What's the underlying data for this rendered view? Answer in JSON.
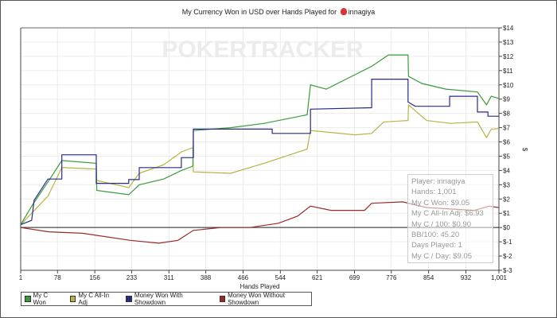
{
  "chart_data": {
    "type": "line",
    "title": "My Currency Won in USD over Hands Played for",
    "player": "innagiya",
    "xlabel": "Hands Played",
    "ylabel": "$",
    "xlim": [
      1,
      1001
    ],
    "ylim": [
      -3,
      14
    ],
    "x_ticks": [
      "1",
      "78",
      "156",
      "233",
      "311",
      "388",
      "466",
      "544",
      "621",
      "699",
      "776",
      "854",
      "932",
      "1,001"
    ],
    "x_tick_values": [
      1,
      78,
      156,
      233,
      311,
      388,
      466,
      544,
      621,
      699,
      776,
      854,
      932,
      1001
    ],
    "y_ticks": [
      "$-3",
      "$-2",
      "$-1",
      "$0",
      "$1",
      "$2",
      "$3",
      "$4",
      "$5",
      "$6",
      "$7",
      "$8",
      "$9",
      "$10",
      "$11",
      "$12",
      "$13",
      "$14"
    ],
    "y_tick_values": [
      -3,
      -2,
      -1,
      0,
      1,
      2,
      3,
      4,
      5,
      6,
      7,
      8,
      9,
      10,
      11,
      12,
      13,
      14
    ],
    "grid": true,
    "watermark": "POKERTRACKER",
    "legend_position": "bottom-left",
    "series": [
      {
        "name": "My C Won",
        "color": "#3a9a3a",
        "points": [
          [
            1,
            0.2
          ],
          [
            24,
            1.5
          ],
          [
            58,
            3.2
          ],
          [
            87,
            4.7
          ],
          [
            159,
            4.5
          ],
          [
            160,
            2.6
          ],
          [
            227,
            2.3
          ],
          [
            249,
            3.0
          ],
          [
            300,
            3.4
          ],
          [
            337,
            4.0
          ],
          [
            361,
            4.3
          ],
          [
            362,
            6.8
          ],
          [
            440,
            7.0
          ],
          [
            510,
            7.3
          ],
          [
            600,
            7.9
          ],
          [
            607,
            10.0
          ],
          [
            640,
            9.7
          ],
          [
            735,
            11.3
          ],
          [
            770,
            12.1
          ],
          [
            811,
            12.1
          ],
          [
            812,
            10.6
          ],
          [
            840,
            10.1
          ],
          [
            890,
            9.7
          ],
          [
            956,
            9.5
          ],
          [
            975,
            8.6
          ],
          [
            985,
            9.2
          ],
          [
            1001,
            9.05
          ]
        ]
      },
      {
        "name": "My C All-In Adj",
        "color": "#b5b540",
        "points": [
          [
            1,
            0.2
          ],
          [
            24,
            1.0
          ],
          [
            58,
            2.2
          ],
          [
            87,
            4.2
          ],
          [
            159,
            4.1
          ],
          [
            160,
            3.3
          ],
          [
            227,
            2.8
          ],
          [
            249,
            3.8
          ],
          [
            300,
            4.4
          ],
          [
            337,
            5.3
          ],
          [
            361,
            5.6
          ],
          [
            362,
            3.9
          ],
          [
            440,
            3.8
          ],
          [
            510,
            4.5
          ],
          [
            600,
            5.5
          ],
          [
            607,
            6.8
          ],
          [
            700,
            6.5
          ],
          [
            735,
            6.6
          ],
          [
            760,
            7.4
          ],
          [
            811,
            7.5
          ],
          [
            812,
            8.6
          ],
          [
            850,
            7.5
          ],
          [
            900,
            7.3
          ],
          [
            956,
            7.4
          ],
          [
            975,
            6.3
          ],
          [
            985,
            6.9
          ],
          [
            1001,
            6.93
          ]
        ]
      },
      {
        "name": "Money Won With Showdown",
        "color": "#2a2a8a",
        "points": [
          [
            1,
            0.2
          ],
          [
            24,
            0.5
          ],
          [
            29,
            1.9
          ],
          [
            58,
            3.4
          ],
          [
            87,
            3.4
          ],
          [
            87,
            5.1
          ],
          [
            159,
            5.1
          ],
          [
            159,
            3.1
          ],
          [
            227,
            3.1
          ],
          [
            227,
            3.36
          ],
          [
            249,
            3.36
          ],
          [
            249,
            4.2
          ],
          [
            337,
            4.2
          ],
          [
            337,
            4.9
          ],
          [
            362,
            4.9
          ],
          [
            362,
            6.9
          ],
          [
            527,
            6.9
          ],
          [
            527,
            6.6
          ],
          [
            607,
            6.6
          ],
          [
            607,
            8.3
          ],
          [
            735,
            8.4
          ],
          [
            735,
            10.4
          ],
          [
            811,
            10.4
          ],
          [
            811,
            8.8
          ],
          [
            826,
            8.5
          ],
          [
            898,
            8.5
          ],
          [
            898,
            9.2
          ],
          [
            956,
            9.2
          ],
          [
            956,
            8.1
          ],
          [
            978,
            8.1
          ],
          [
            978,
            7.8
          ],
          [
            1001,
            7.8
          ]
        ]
      },
      {
        "name": "Money Won Without Showdown",
        "color": "#9a2a2a",
        "points": [
          [
            1,
            0
          ],
          [
            60,
            -0.3
          ],
          [
            130,
            -0.4
          ],
          [
            230,
            -0.9
          ],
          [
            290,
            -1.1
          ],
          [
            330,
            -0.9
          ],
          [
            362,
            -0.2
          ],
          [
            420,
            0
          ],
          [
            480,
            0
          ],
          [
            540,
            0.3
          ],
          [
            580,
            0.8
          ],
          [
            607,
            1.5
          ],
          [
            650,
            1.2
          ],
          [
            720,
            1.2
          ],
          [
            735,
            1.7
          ],
          [
            800,
            1.8
          ],
          [
            850,
            1.4
          ],
          [
            950,
            1.2
          ],
          [
            980,
            1.5
          ],
          [
            1001,
            1.4
          ]
        ]
      }
    ]
  },
  "stats": [
    "Player: innagiya",
    "Hands: 1,001",
    "My C Won: $9.05",
    "My C All-In Adj: $6.93",
    "My C / 100: $0.90",
    "BB/100: 45.20",
    "Days Played: 1",
    "My C / Day: $9.05"
  ]
}
